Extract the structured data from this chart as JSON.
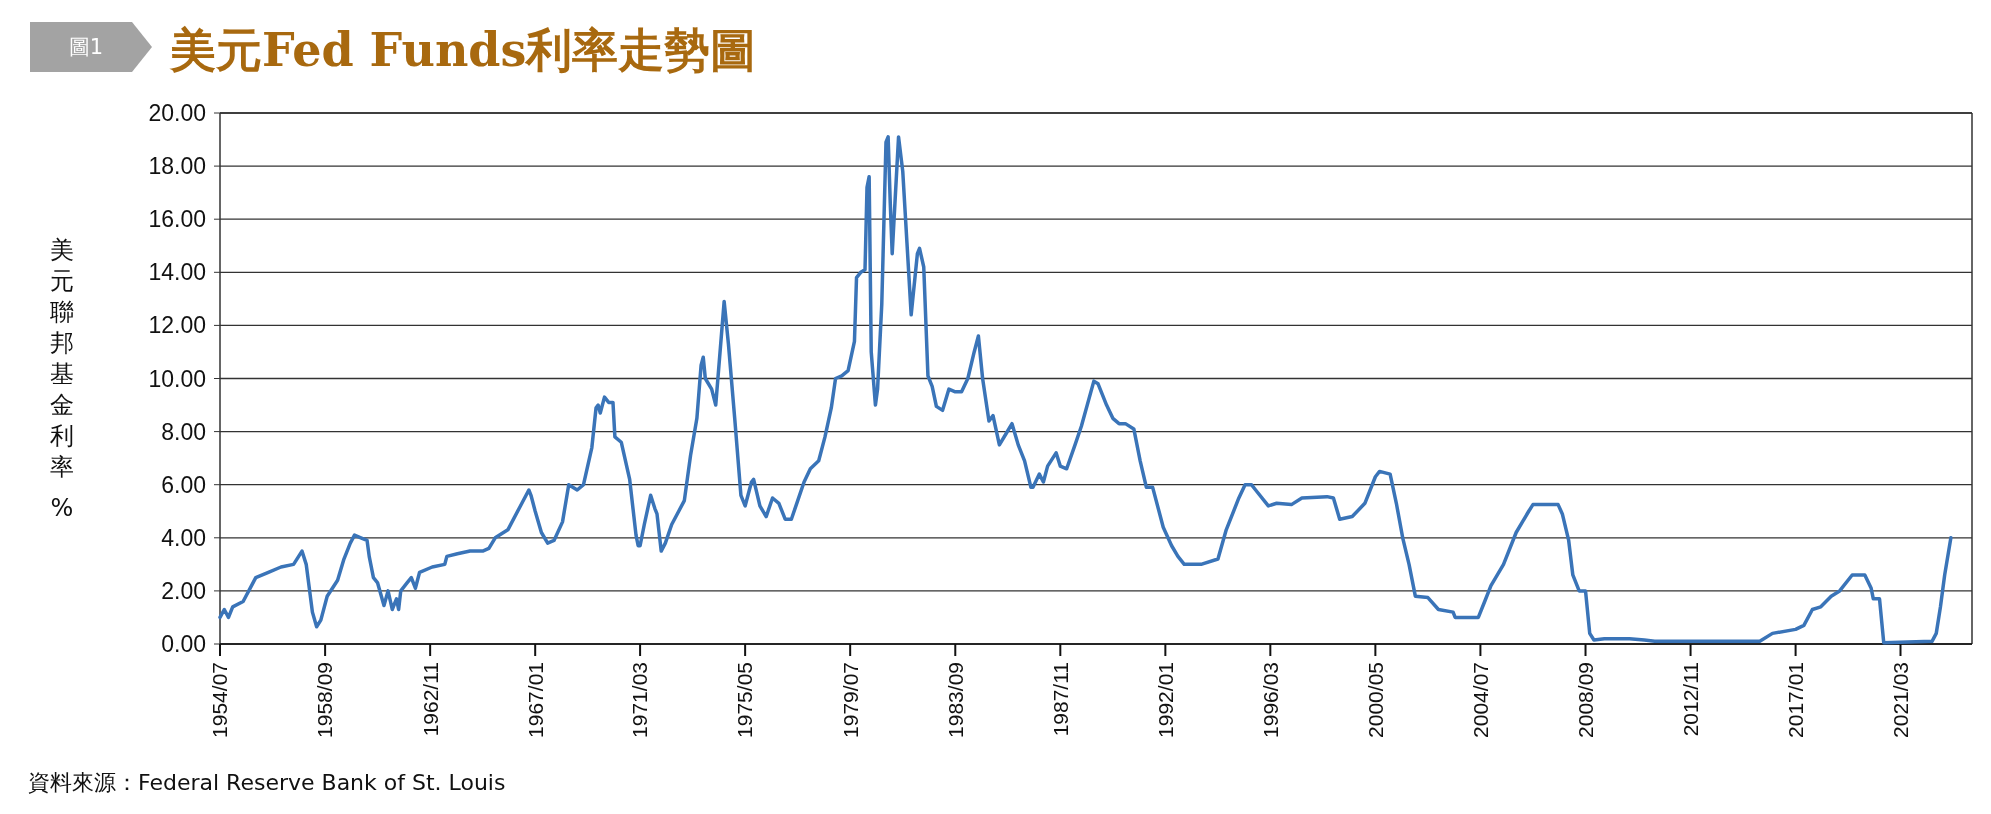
{
  "chart_data": {
    "type": "line",
    "title": "美元Fed Funds利率走勢圖",
    "ylabel": "美元聯邦基金利率%",
    "annotations": [
      "圖1",
      "資料來源：Federal Reserve Bank of St. Louis"
    ],
    "xlim": [
      "1954-07",
      "2024-01"
    ],
    "xticks": [
      {
        "value": "1954-07",
        "label": "1954/07"
      },
      {
        "value": "1958-09",
        "label": "1958/09"
      },
      {
        "value": "1962-11",
        "label": "1962/11"
      },
      {
        "value": "1967-01",
        "label": "1967/01"
      },
      {
        "value": "1971-03",
        "label": "1971/03"
      },
      {
        "value": "1975-05",
        "label": "1975/05"
      },
      {
        "value": "1979-07",
        "label": "1979/07"
      },
      {
        "value": "1983-09",
        "label": "1983/09"
      },
      {
        "value": "1987-11",
        "label": "1987/11"
      },
      {
        "value": "1992-01",
        "label": "1992/01"
      },
      {
        "value": "1996-03",
        "label": "1996/03"
      },
      {
        "value": "2000-05",
        "label": "2000/05"
      },
      {
        "value": "2004-07",
        "label": "2004/07"
      },
      {
        "value": "2008-09",
        "label": "2008/09"
      },
      {
        "value": "2012-11",
        "label": "2012/11"
      },
      {
        "value": "2017-01",
        "label": "2017/01"
      },
      {
        "value": "2021-03",
        "label": "2021/03"
      }
    ],
    "ylim": [
      0,
      20
    ],
    "yticks": [
      {
        "value": 0,
        "label": "0.00"
      },
      {
        "value": 2,
        "label": "2.00"
      },
      {
        "value": 4,
        "label": "4.00"
      },
      {
        "value": 6,
        "label": "6.00"
      },
      {
        "value": 8,
        "label": "8.00"
      },
      {
        "value": 10,
        "label": "10.00"
      },
      {
        "value": 12,
        "label": "12.00"
      },
      {
        "value": 14,
        "label": "14.00"
      },
      {
        "value": 16,
        "label": "16.00"
      },
      {
        "value": 18,
        "label": "18.00"
      },
      {
        "value": 20,
        "label": "20.00"
      }
    ],
    "grid": "y",
    "marker": "none",
    "line_style": "solid",
    "x": [
      "1954-07",
      "1954-09",
      "1954-11",
      "1955-01",
      "1955-06",
      "1955-12",
      "1956-06",
      "1956-12",
      "1957-06",
      "1957-10",
      "1957-12",
      "1958-03",
      "1958-05",
      "1958-07",
      "1958-10",
      "1959-03",
      "1959-06",
      "1959-09",
      "1959-11",
      "1960-02",
      "1960-05",
      "1960-06",
      "1960-08",
      "1960-10",
      "1961-01",
      "1961-03",
      "1961-05",
      "1961-07",
      "1961-08",
      "1961-09",
      "1961-12",
      "1962-02",
      "1962-04",
      "1962-06",
      "1962-12",
      "1963-06",
      "1963-07",
      "1963-12",
      "1964-06",
      "1964-12",
      "1965-03",
      "1965-06",
      "1965-12",
      "1966-06",
      "1966-10",
      "1966-11",
      "1967-01",
      "1967-04",
      "1967-07",
      "1967-10",
      "1968-02",
      "1968-05",
      "1968-09",
      "1968-12",
      "1969-04",
      "1969-06",
      "1969-07",
      "1969-08",
      "1969-10",
      "1969-12",
      "1970-02",
      "1970-03",
      "1970-06",
      "1970-10",
      "1971-01",
      "1971-02",
      "1971-03",
      "1971-05",
      "1971-08",
      "1971-10",
      "1971-11",
      "1972-01",
      "1972-03",
      "1972-06",
      "1972-12",
      "1973-03",
      "1973-06",
      "1973-08",
      "1973-09",
      "1973-10",
      "1974-01",
      "1974-03",
      "1974-07",
      "1974-09",
      "1974-12",
      "1975-03",
      "1975-05",
      "1975-08",
      "1975-09",
      "1975-12",
      "1976-03",
      "1976-06",
      "1976-09",
      "1976-12",
      "1977-03",
      "1977-06",
      "1977-09",
      "1977-12",
      "1978-04",
      "1978-07",
      "1978-10",
      "1978-12",
      "1979-03",
      "1979-06",
      "1979-09",
      "1979-10",
      "1979-12",
      "1980-02",
      "1980-03",
      "1980-04",
      "1980-05",
      "1980-07",
      "1980-08",
      "1980-10",
      "1980-12",
      "1981-01",
      "1981-02",
      "1981-03",
      "1981-06",
      "1981-08",
      "1981-10",
      "1981-12",
      "1982-03",
      "1982-04",
      "1982-06",
      "1982-08",
      "1982-10",
      "1982-12",
      "1983-03",
      "1983-06",
      "1983-09",
      "1983-12",
      "1984-03",
      "1984-06",
      "1984-08",
      "1984-10",
      "1985-01",
      "1985-03",
      "1985-06",
      "1985-09",
      "1985-12",
      "1986-03",
      "1986-06",
      "1986-09",
      "1986-10",
      "1987-01",
      "1987-03",
      "1987-05",
      "1987-09",
      "1987-11",
      "1988-02",
      "1988-06",
      "1988-09",
      "1989-03",
      "1989-05",
      "1989-09",
      "1989-12",
      "1990-03",
      "1990-06",
      "1990-10",
      "1991-01",
      "1991-04",
      "1991-07",
      "1991-12",
      "1992-04",
      "1992-07",
      "1992-10",
      "1993-06",
      "1994-02",
      "1994-06",
      "1994-12",
      "1995-03",
      "1995-06",
      "1995-08",
      "1996-02",
      "1996-06",
      "1997-01",
      "1997-06",
      "1998-06",
      "1998-09",
      "1998-12",
      "1999-06",
      "1999-12",
      "2000-05",
      "2000-07",
      "2000-12",
      "2001-03",
      "2001-06",
      "2001-09",
      "2001-12",
      "2002-06",
      "2002-11",
      "2003-06",
      "2003-07",
      "2004-06",
      "2004-09",
      "2004-12",
      "2005-06",
      "2005-12",
      "2006-06",
      "2006-08",
      "2007-08",
      "2007-10",
      "2008-01",
      "2008-03",
      "2008-06",
      "2008-09",
      "2008-11",
      "2009-01",
      "2009-06",
      "2010-06",
      "2011-01",
      "2011-06",
      "2015-08",
      "2016-02",
      "2017-01",
      "2017-05",
      "2017-09",
      "2018-01",
      "2018-06",
      "2018-10",
      "2019-04",
      "2019-10",
      "2020-01",
      "2020-02",
      "2020-05",
      "2020-07",
      "2022-06",
      "2022-08",
      "2022-10",
      "2022-12",
      "2023-03"
    ],
    "values": [
      1.0,
      1.3,
      1.0,
      1.4,
      1.6,
      2.5,
      2.7,
      2.9,
      3.0,
      3.5,
      3.0,
      1.2,
      0.65,
      0.9,
      1.8,
      2.4,
      3.2,
      3.8,
      4.1,
      4.0,
      3.9,
      3.3,
      2.5,
      2.3,
      1.45,
      2.0,
      1.3,
      1.7,
      1.3,
      2.0,
      2.3,
      2.5,
      2.1,
      2.7,
      2.9,
      3.0,
      3.3,
      3.4,
      3.5,
      3.5,
      3.6,
      4.0,
      4.3,
      5.2,
      5.8,
      5.6,
      5.0,
      4.2,
      3.8,
      3.9,
      4.6,
      6.0,
      5.8,
      6.0,
      7.4,
      8.9,
      9.0,
      8.7,
      9.3,
      9.1,
      9.1,
      7.8,
      7.6,
      6.2,
      4.1,
      3.7,
      3.7,
      4.5,
      5.6,
      5.1,
      4.9,
      3.5,
      3.8,
      4.5,
      5.4,
      7.1,
      8.5,
      10.5,
      10.8,
      10.0,
      9.6,
      9.0,
      12.9,
      11.3,
      8.5,
      5.6,
      5.2,
      6.1,
      6.2,
      5.2,
      4.8,
      5.5,
      5.3,
      4.7,
      4.7,
      5.4,
      6.1,
      6.6,
      6.9,
      7.8,
      8.9,
      10.0,
      10.1,
      10.3,
      11.4,
      13.8,
      14.0,
      14.1,
      17.2,
      17.6,
      11.0,
      9.0,
      9.6,
      12.8,
      18.9,
      19.1,
      16.6,
      14.7,
      19.1,
      17.8,
      15.1,
      12.4,
      14.7,
      14.9,
      14.2,
      10.1,
      9.7,
      8.95,
      8.8,
      9.6,
      9.5,
      9.5,
      10.0,
      11.0,
      11.6,
      10.0,
      8.4,
      8.6,
      7.5,
      7.9,
      8.3,
      7.5,
      6.9,
      5.9,
      5.9,
      6.4,
      6.1,
      6.7,
      7.2,
      6.7,
      6.6,
      7.5,
      8.2,
      9.9,
      9.8,
      9.0,
      8.5,
      8.3,
      8.3,
      8.1,
      6.9,
      5.9,
      5.9,
      4.4,
      3.7,
      3.3,
      3.0,
      3.0,
      3.2,
      4.3,
      5.5,
      6.0,
      6.0,
      5.8,
      5.2,
      5.3,
      5.25,
      5.5,
      5.55,
      5.5,
      4.7,
      4.8,
      5.3,
      6.3,
      6.5,
      6.4,
      5.3,
      4.0,
      3.0,
      1.8,
      1.75,
      1.3,
      1.2,
      1.0,
      1.0,
      1.6,
      2.2,
      3.0,
      4.2,
      5.0,
      5.25,
      5.25,
      4.9,
      3.9,
      2.6,
      2.0,
      2.0,
      0.4,
      0.15,
      0.2,
      0.2,
      0.15,
      0.1,
      0.1,
      0.4,
      0.55,
      0.7,
      1.3,
      1.4,
      1.8,
      2.0,
      2.6,
      2.6,
      2.1,
      1.7,
      1.7,
      0.05,
      0.1,
      0.4,
      1.4,
      2.6,
      4.0
    ],
    "color": "#3a74b8"
  }
}
